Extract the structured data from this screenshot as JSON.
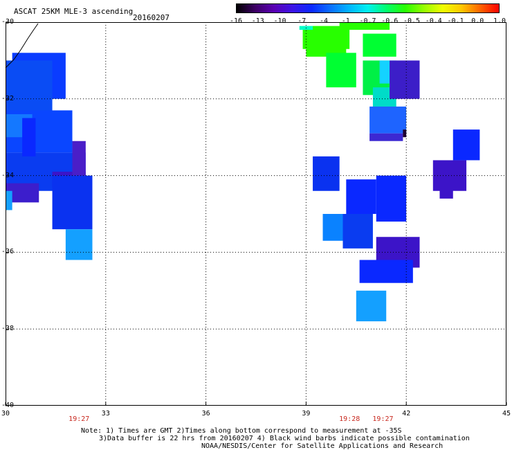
{
  "header": {
    "title": "ASCAT 25KM MLE-3 ascending",
    "date": "20160207"
  },
  "colorbar": {
    "labels": [
      "-16",
      "-13",
      "-10",
      "-7",
      "-4",
      "-1",
      "-0.7",
      "-0.6",
      "-0.5",
      "-0.4",
      "-0.1",
      "0.0",
      "1.0"
    ],
    "colors": [
      "#000000",
      "#3c0064",
      "#5a00b4",
      "#3c14e6",
      "#0a28ff",
      "#0a6eff",
      "#00b4ff",
      "#00f0f0",
      "#00ff6e",
      "#28ff00",
      "#96ff00",
      "#f0ff00",
      "#ffc800",
      "#ff6400",
      "#ff0000"
    ]
  },
  "map": {
    "lon_range": [
      30,
      45
    ],
    "lat_range": [
      -40,
      -30
    ],
    "lon_ticks": [
      "30",
      "33",
      "36",
      "39",
      "42",
      "45"
    ],
    "lat_ticks": [
      "-30",
      "-32",
      "-34",
      "-36",
      "-38",
      "-40"
    ],
    "grid": "dotted",
    "times": [
      {
        "label": "19:27",
        "lon": 32.2
      },
      {
        "label": "19:28",
        "lon": 40.3
      },
      {
        "label": "19:27",
        "lon": 41.3
      }
    ],
    "swaths": [
      {
        "lon0": 30.2,
        "lon1": 31.8,
        "lat0": -30.8,
        "lat1": -32.0,
        "color": "#0a3cff"
      },
      {
        "lon0": 30.0,
        "lon1": 31.4,
        "lat0": -31.0,
        "lat1": -32.4,
        "color": "#0a4cf4"
      },
      {
        "lon0": 30.0,
        "lon1": 32.0,
        "lat0": -32.3,
        "lat1": -33.4,
        "color": "#0a46ff"
      },
      {
        "lon0": 30.0,
        "lon1": 32.4,
        "lat0": -33.4,
        "lat1": -34.4,
        "color": "#0a3cf0"
      },
      {
        "lon0": 30.0,
        "lon1": 30.8,
        "lat0": -32.4,
        "lat1": -33.0,
        "color": "#1478ff"
      },
      {
        "lon0": 30.0,
        "lon1": 31.0,
        "lat0": -34.2,
        "lat1": -34.7,
        "color": "#3c1ecc"
      },
      {
        "lon0": 30.0,
        "lon1": 30.2,
        "lat0": -34.4,
        "lat1": -34.9,
        "color": "#14a0ff"
      },
      {
        "lon0": 31.4,
        "lon1": 32.4,
        "lat0": -33.9,
        "lat1": -34.3,
        "color": "#3c14c8"
      },
      {
        "lon0": 32.0,
        "lon1": 32.4,
        "lat0": -33.1,
        "lat1": -34.0,
        "color": "#4a1ec8"
      },
      {
        "lon0": 31.4,
        "lon1": 32.6,
        "lat0": -34.0,
        "lat1": -35.4,
        "color": "#0a32f0"
      },
      {
        "lon0": 31.8,
        "lon1": 32.6,
        "lat0": -35.4,
        "lat1": -36.2,
        "color": "#14a0ff"
      },
      {
        "lon0": 30.5,
        "lon1": 30.9,
        "lat0": -32.5,
        "lat1": -33.5,
        "color": "#0a28ff"
      },
      {
        "lon0": 38.9,
        "lon1": 40.3,
        "lat0": -30.1,
        "lat1": -30.7,
        "color": "#28ff00"
      },
      {
        "lon0": 38.8,
        "lon1": 39.2,
        "lat0": -30.1,
        "lat1": -30.2,
        "color": "#00ffc8"
      },
      {
        "lon0": 40.0,
        "lon1": 41.5,
        "lat0": -30.0,
        "lat1": -30.2,
        "color": "#28ff00"
      },
      {
        "lon0": 39.0,
        "lon1": 40.2,
        "lat0": -30.3,
        "lat1": -30.9,
        "color": "#28ff00"
      },
      {
        "lon0": 39.6,
        "lon1": 40.5,
        "lat0": -30.8,
        "lat1": -31.7,
        "color": "#00ff32"
      },
      {
        "lon0": 40.7,
        "lon1": 41.7,
        "lat0": -30.3,
        "lat1": -30.9,
        "color": "#00ff32"
      },
      {
        "lon0": 40.7,
        "lon1": 41.5,
        "lat0": -31.0,
        "lat1": -31.9,
        "color": "#00f046"
      },
      {
        "lon0": 41.0,
        "lon1": 41.7,
        "lat0": -31.7,
        "lat1": -32.3,
        "color": "#00dcc8"
      },
      {
        "lon0": 41.2,
        "lon1": 41.7,
        "lat0": -31.0,
        "lat1": -31.6,
        "color": "#14d2ff"
      },
      {
        "lon0": 41.5,
        "lon1": 42.4,
        "lat0": -31.0,
        "lat1": -32.0,
        "color": "#3c1ec8"
      },
      {
        "lon0": 40.9,
        "lon1": 42.0,
        "lat0": -32.2,
        "lat1": -32.9,
        "color": "#1e64ff"
      },
      {
        "lon0": 40.9,
        "lon1": 41.9,
        "lat0": -32.9,
        "lat1": -33.1,
        "color": "#3c28d2"
      },
      {
        "lon0": 41.9,
        "lon1": 42.0,
        "lat0": -32.8,
        "lat1": -33.0,
        "color": "#1e0032"
      },
      {
        "lon0": 39.2,
        "lon1": 40.0,
        "lat0": -33.5,
        "lat1": -34.4,
        "color": "#0a32f0"
      },
      {
        "lon0": 40.2,
        "lon1": 41.1,
        "lat0": -34.1,
        "lat1": -35.0,
        "color": "#0a28ff"
      },
      {
        "lon0": 41.1,
        "lon1": 42.0,
        "lat0": -34.0,
        "lat1": -35.2,
        "color": "#0a28ff"
      },
      {
        "lon0": 39.5,
        "lon1": 40.1,
        "lat0": -35.0,
        "lat1": -35.7,
        "color": "#0a82ff"
      },
      {
        "lon0": 40.1,
        "lon1": 41.0,
        "lat0": -35.0,
        "lat1": -35.9,
        "color": "#0a3cf0"
      },
      {
        "lon0": 41.1,
        "lon1": 42.4,
        "lat0": -35.6,
        "lat1": -36.4,
        "color": "#3c14c8"
      },
      {
        "lon0": 40.6,
        "lon1": 42.2,
        "lat0": -36.2,
        "lat1": -36.8,
        "color": "#0a28ff"
      },
      {
        "lon0": 40.5,
        "lon1": 41.4,
        "lat0": -37.0,
        "lat1": -37.8,
        "color": "#14a0ff"
      },
      {
        "lon0": 42.8,
        "lon1": 43.8,
        "lat0": -33.6,
        "lat1": -34.4,
        "color": "#3c14c8"
      },
      {
        "lon0": 43.0,
        "lon1": 43.4,
        "lat0": -34.3,
        "lat1": -34.6,
        "color": "#3c14c8"
      },
      {
        "lon0": 43.4,
        "lon1": 44.2,
        "lat0": -32.8,
        "lat1": -33.6,
        "color": "#0a28ff"
      }
    ]
  },
  "notes": {
    "line1": "Note: 1) Times are GMT 2)Times along bottom correspond to measurement at -35S",
    "line2": "3)Data buffer is 22 hrs from 20160207 4) Black wind barbs indicate possible contamination",
    "line3": "NOAA/NESDIS/Center for Satellite Applications and Research"
  }
}
